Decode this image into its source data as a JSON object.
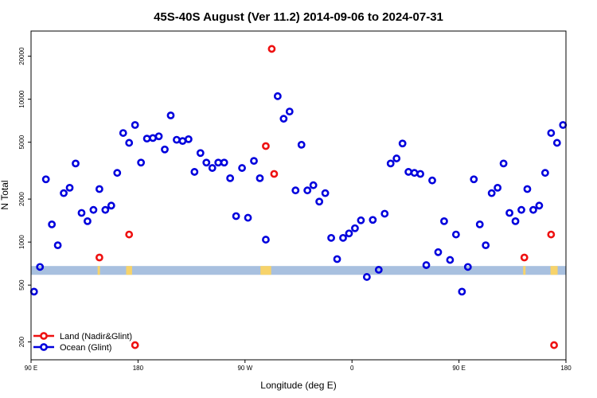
{
  "chart_data": {
    "type": "scatter",
    "title": "45S-40S August (Ver 11.2)   2014-09-06 to 2024-07-31",
    "xlabel": "Longitude (deg E)",
    "ylabel": "N Total",
    "x_scale": "longitude",
    "x_ticks": [
      {
        "value": 90,
        "label": "90 E"
      },
      {
        "value": 180,
        "label": "180"
      },
      {
        "value": 270,
        "label": "90 W"
      },
      {
        "value": 360,
        "label": "0"
      },
      {
        "value": 450,
        "label": "90 E"
      },
      {
        "value": 540,
        "label": "180"
      }
    ],
    "xlim": [
      90,
      540
    ],
    "y_scale": "log",
    "y_ticks": [
      {
        "value": 200,
        "label": "200"
      },
      {
        "value": 500,
        "label": "500"
      },
      {
        "value": 1000,
        "label": "1000"
      },
      {
        "value": 2000,
        "label": "2000"
      },
      {
        "value": 5000,
        "label": "5000"
      },
      {
        "value": 10000,
        "label": "10000"
      },
      {
        "value": 20000,
        "label": "20000"
      }
    ],
    "ylim": [
      150,
      30000
    ],
    "band": {
      "y_range": [
        590,
        680
      ],
      "color": "#a8c0df",
      "land_color": "#f7d36a",
      "land_x_ranges": [
        [
          146,
          148
        ],
        [
          170,
          175
        ],
        [
          283,
          292
        ],
        [
          504,
          506
        ],
        [
          527,
          533
        ]
      ]
    },
    "legend": {
      "position": "bottom-left",
      "entries": [
        {
          "label": "Land (Nadir&Glint)",
          "color": "#ee1111"
        },
        {
          "label": "Ocean (Glint)",
          "color": "#0000dd"
        }
      ]
    },
    "series": [
      {
        "name": "Land (Nadir&Glint)",
        "color": "#ee1111",
        "points": [
          [
            147.5,
            780
          ],
          [
            172.5,
            1130
          ],
          [
            177.5,
            190
          ],
          [
            287.5,
            4700
          ],
          [
            292.5,
            22500
          ],
          [
            294.5,
            3000
          ],
          [
            505,
            780
          ],
          [
            527.5,
            1130
          ],
          [
            530,
            190
          ]
        ]
      },
      {
        "name": "Ocean (Glint)",
        "color": "#0000dd",
        "points": [
          [
            92.5,
            450
          ],
          [
            97.5,
            670
          ],
          [
            102.5,
            2750
          ],
          [
            107.5,
            1330
          ],
          [
            112.5,
            950
          ],
          [
            117.5,
            2200
          ],
          [
            122.5,
            2400
          ],
          [
            127.5,
            3550
          ],
          [
            132.5,
            1600
          ],
          [
            137.5,
            1400
          ],
          [
            142.5,
            1680
          ],
          [
            147.5,
            2350
          ],
          [
            152.5,
            1680
          ],
          [
            157.5,
            1800
          ],
          [
            162.5,
            3050
          ],
          [
            167.5,
            5800
          ],
          [
            172.5,
            4950
          ],
          [
            177.5,
            6600
          ],
          [
            182.5,
            3600
          ],
          [
            187.5,
            5300
          ],
          [
            192.5,
            5350
          ],
          [
            197.5,
            5500
          ],
          [
            202.5,
            4450
          ],
          [
            207.5,
            7700
          ],
          [
            212.5,
            5200
          ],
          [
            217.5,
            5100
          ],
          [
            222.5,
            5250
          ],
          [
            227.5,
            3100
          ],
          [
            232.5,
            4200
          ],
          [
            237.5,
            3600
          ],
          [
            242.5,
            3300
          ],
          [
            247.5,
            3600
          ],
          [
            252.5,
            3600
          ],
          [
            257.5,
            2800
          ],
          [
            262.5,
            1520
          ],
          [
            267.5,
            3300
          ],
          [
            272.5,
            1480
          ],
          [
            277.5,
            3700
          ],
          [
            282.5,
            2800
          ],
          [
            287.5,
            1040
          ],
          [
            297.5,
            10500
          ],
          [
            302.5,
            7300
          ],
          [
            307.5,
            8200
          ],
          [
            312.5,
            2300
          ],
          [
            317.5,
            4800
          ],
          [
            322.5,
            2300
          ],
          [
            327.5,
            2500
          ],
          [
            332.5,
            1920
          ],
          [
            337.5,
            2200
          ],
          [
            342.5,
            1070
          ],
          [
            347.5,
            760
          ],
          [
            352.5,
            1070
          ],
          [
            357.5,
            1150
          ],
          [
            362.5,
            1250
          ],
          [
            367.5,
            1420
          ],
          [
            372.5,
            570
          ],
          [
            377.5,
            1430
          ],
          [
            382.5,
            640
          ],
          [
            387.5,
            1580
          ],
          [
            392.5,
            3550
          ],
          [
            397.5,
            3850
          ],
          [
            402.5,
            4900
          ],
          [
            407.5,
            3100
          ],
          [
            412.5,
            3050
          ],
          [
            417.5,
            3000
          ],
          [
            422.5,
            690
          ],
          [
            427.5,
            2700
          ],
          [
            432.5,
            850
          ],
          [
            437.5,
            1400
          ],
          [
            442.5,
            750
          ],
          [
            447.5,
            1130
          ],
          [
            452.5,
            450
          ],
          [
            457.5,
            670
          ],
          [
            462.5,
            2750
          ],
          [
            467.5,
            1330
          ],
          [
            472.5,
            950
          ],
          [
            477.5,
            2200
          ],
          [
            482.5,
            2400
          ],
          [
            487.5,
            3550
          ],
          [
            492.5,
            1600
          ],
          [
            497.5,
            1400
          ],
          [
            502.5,
            1680
          ],
          [
            507.5,
            2350
          ],
          [
            512.5,
            1680
          ],
          [
            517.5,
            1800
          ],
          [
            522.5,
            3050
          ],
          [
            527.5,
            5800
          ],
          [
            532.5,
            4950
          ],
          [
            537.5,
            6600
          ]
        ]
      }
    ]
  }
}
